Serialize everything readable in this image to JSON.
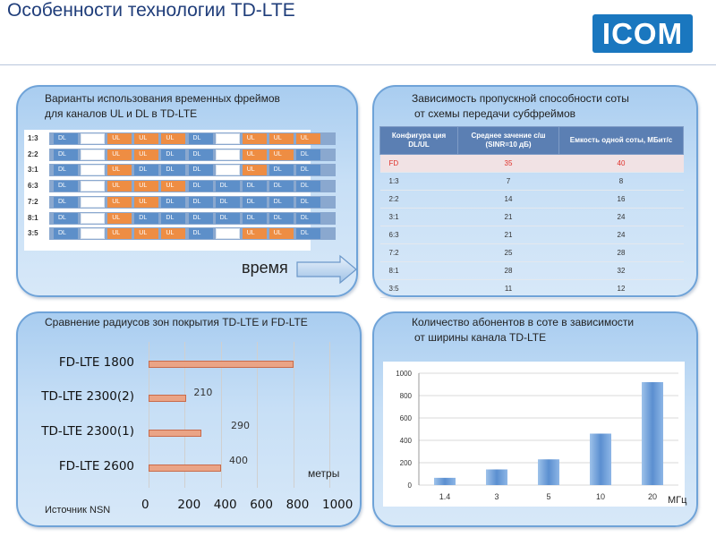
{
  "title": "Особенности технологии TD-LTE",
  "logo": "ICOM",
  "frames_panel": {
    "caption_l1": "Варианты использования временных фреймов",
    "caption_l2": "для каналов UL и DL в TD-LTE",
    "rows": [
      {
        "label": "1:3",
        "cells": [
          "DL",
          "",
          "UL",
          "UL",
          "UL",
          "DL",
          "",
          "UL",
          "UL",
          "UL"
        ]
      },
      {
        "label": "2:2",
        "cells": [
          "DL",
          "",
          "UL",
          "UL",
          "DL",
          "DL",
          "",
          "UL",
          "UL",
          "DL"
        ]
      },
      {
        "label": "3:1",
        "cells": [
          "DL",
          "",
          "UL",
          "DL",
          "DL",
          "DL",
          "",
          "UL",
          "DL",
          "DL"
        ]
      },
      {
        "label": "6:3",
        "cells": [
          "DL",
          "",
          "UL",
          "UL",
          "UL",
          "DL",
          "DL",
          "DL",
          "DL",
          "DL"
        ]
      },
      {
        "label": "7:2",
        "cells": [
          "DL",
          "",
          "UL",
          "UL",
          "DL",
          "DL",
          "DL",
          "DL",
          "DL",
          "DL"
        ]
      },
      {
        "label": "8:1",
        "cells": [
          "DL",
          "",
          "UL",
          "DL",
          "DL",
          "DL",
          "DL",
          "DL",
          "DL",
          "DL"
        ]
      },
      {
        "label": "3:5",
        "cells": [
          "DL",
          "",
          "UL",
          "UL",
          "UL",
          "DL",
          "",
          "UL",
          "UL",
          "DL"
        ]
      }
    ],
    "time_label": "время"
  },
  "capacity_panel": {
    "caption_l1": "Зависимость пропускной способности соты",
    "caption_l2": "от схемы передачи субфреймов",
    "headers": [
      "Конфигура ция DL/UL",
      "Среднее зачение с/ш (SINR=10 дБ)",
      "Емкость одной соты, МБит/с"
    ],
    "rows": [
      [
        "FD",
        "35",
        "40"
      ],
      [
        "1:3",
        "7",
        "8"
      ],
      [
        "2:2",
        "14",
        "16"
      ],
      [
        "3:1",
        "21",
        "24"
      ],
      [
        "6:3",
        "21",
        "24"
      ],
      [
        "7:2",
        "25",
        "28"
      ],
      [
        "8:1",
        "28",
        "32"
      ],
      [
        "3:5",
        "11",
        "12"
      ]
    ]
  },
  "radius_panel": {
    "caption": "Сравнение радиусов зон покрытия TD-LTE и FD-LTE",
    "unit_label": "метры",
    "source": "Источник NSN"
  },
  "subscribers_panel": {
    "caption_l1": "Количество абонентов в соте в зависимости",
    "caption_l2": "от ширины канала TD-LTE",
    "unit_label": "МГц"
  },
  "chart_data": [
    {
      "type": "bar",
      "orientation": "horizontal",
      "title": "Сравнение радиусов зон покрытия TD-LTE и FD-LTE",
      "categories": [
        "FD-LTE 1800",
        "TD-LTE 2300(2)",
        "TD-LTE 2300(1)",
        "FD-LTE 2600"
      ],
      "values": [
        800,
        210,
        290,
        400
      ],
      "data_labels": [
        "",
        "210",
        "290",
        "400"
      ],
      "xlabel": "метры",
      "xlim": [
        0,
        1000
      ],
      "xticks": [
        "0",
        "200",
        "400",
        "600",
        "800",
        "1000"
      ],
      "grid": true
    },
    {
      "type": "bar",
      "title": "Количество абонентов в соте в зависимости от ширины канала TD-LTE",
      "categories": [
        "1.4",
        "3",
        "5",
        "10",
        "20"
      ],
      "values": [
        65,
        140,
        230,
        460,
        920
      ],
      "xlabel": "МГц",
      "ylim": [
        0,
        1000
      ],
      "yticks": [
        "0",
        "200",
        "400",
        "600",
        "800",
        "1000"
      ],
      "grid": true
    }
  ],
  "colors": {
    "dl": "#5d8fc9",
    "ul": "#ee8d43",
    "title": "#1f3d7a",
    "panel_border": "#6fa3d8",
    "logo": "#1a77bf"
  }
}
